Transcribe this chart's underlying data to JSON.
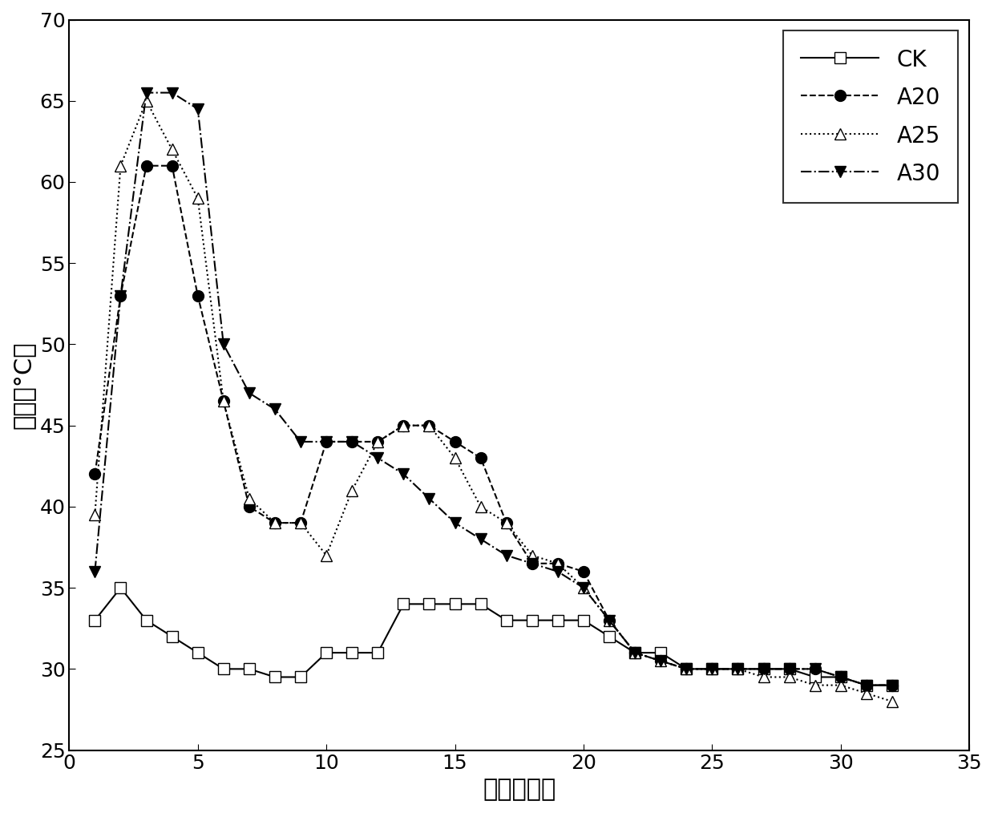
{
  "CK": {
    "x": [
      1,
      2,
      3,
      4,
      5,
      6,
      7,
      8,
      9,
      10,
      11,
      12,
      13,
      14,
      15,
      16,
      17,
      18,
      19,
      20,
      21,
      22,
      23,
      24,
      25,
      26,
      27,
      28,
      29,
      30,
      31,
      32
    ],
    "y": [
      33,
      35,
      33,
      32,
      31,
      30,
      30,
      29.5,
      29.5,
      31,
      31,
      31,
      34,
      34,
      34,
      34,
      33,
      33,
      33,
      33,
      32,
      31,
      31,
      30,
      30,
      30,
      30,
      30,
      29.5,
      29.5,
      29,
      29
    ],
    "linestyle": "-",
    "marker": "s",
    "color": "black",
    "fillstyle": "none",
    "label": "CK"
  },
  "A20": {
    "x": [
      1,
      2,
      3,
      4,
      5,
      6,
      7,
      8,
      9,
      10,
      11,
      12,
      13,
      14,
      15,
      16,
      17,
      18,
      19,
      20,
      21,
      22,
      23,
      24,
      25,
      26,
      27,
      28,
      29,
      30,
      31,
      32
    ],
    "y": [
      42,
      53,
      61,
      61,
      53,
      46.5,
      40,
      39,
      39,
      44,
      44,
      44,
      45,
      45,
      44,
      43,
      39,
      36.5,
      36.5,
      36,
      33,
      31,
      30.5,
      30,
      30,
      30,
      30,
      30,
      30,
      29.5,
      29,
      29
    ],
    "linestyle": "--",
    "marker": "o",
    "color": "black",
    "fillstyle": "full",
    "label": "A20"
  },
  "A25": {
    "x": [
      1,
      2,
      3,
      4,
      5,
      6,
      7,
      8,
      9,
      10,
      11,
      12,
      13,
      14,
      15,
      16,
      17,
      18,
      19,
      20,
      21,
      22,
      23,
      24,
      25,
      26,
      27,
      28,
      29,
      30,
      31,
      32
    ],
    "y": [
      39.5,
      61,
      65,
      62,
      59,
      46.5,
      40.5,
      39,
      39,
      37,
      41,
      44,
      45,
      45,
      43,
      40,
      39,
      37,
      36.5,
      35,
      33,
      31,
      30.5,
      30,
      30,
      30,
      29.5,
      29.5,
      29,
      29,
      28.5,
      28
    ],
    "linestyle": ":",
    "marker": "^",
    "color": "black",
    "fillstyle": "none",
    "label": "A25"
  },
  "A30": {
    "x": [
      1,
      2,
      3,
      4,
      5,
      6,
      7,
      8,
      9,
      10,
      11,
      12,
      13,
      14,
      15,
      16,
      17,
      18,
      19,
      20,
      21,
      22,
      23,
      24,
      25,
      26,
      27,
      28,
      29,
      30,
      31,
      32
    ],
    "y": [
      36,
      53,
      65.5,
      65.5,
      64.5,
      50,
      47,
      46,
      44,
      44,
      44,
      43,
      42,
      40.5,
      39,
      38,
      37,
      36.5,
      36,
      35,
      33,
      31,
      30.5,
      30,
      30,
      30,
      30,
      30,
      30,
      29.5,
      29,
      29
    ],
    "linestyle": "-.",
    "marker": "v",
    "color": "black",
    "fillstyle": "full",
    "label": "A30"
  },
  "xlabel": "天数（天）",
  "ylabel": "温度（°C）",
  "xlim": [
    0,
    35
  ],
  "ylim": [
    25,
    70
  ],
  "xticks": [
    0,
    5,
    10,
    15,
    20,
    25,
    30,
    35
  ],
  "yticks": [
    25,
    30,
    35,
    40,
    45,
    50,
    55,
    60,
    65,
    70
  ],
  "xlabel_fontsize": 22,
  "ylabel_fontsize": 22,
  "tick_fontsize": 18,
  "legend_fontsize": 20,
  "markersize": 10,
  "linewidth": 1.5
}
